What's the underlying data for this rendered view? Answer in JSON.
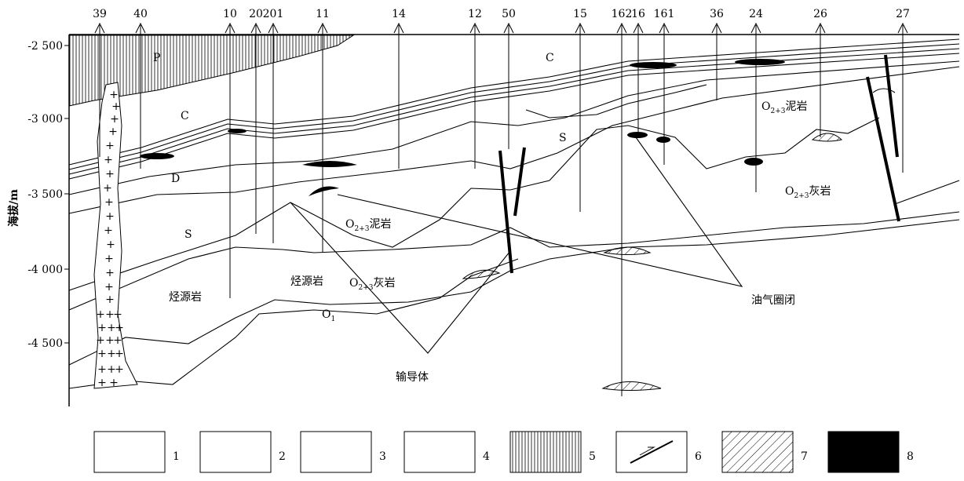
{
  "wells": [
    "39",
    "40",
    "10",
    "20",
    "201",
    "11",
    "14",
    "12",
    "50",
    "15",
    "162",
    "16",
    "161",
    "36",
    "24",
    "26",
    "27"
  ],
  "axis": {
    "label": "海拔/m",
    "ticks": [
      "-2 500",
      "-3 000",
      "-3 500",
      "-4 000",
      "-4 500"
    ]
  },
  "formations": [
    {
      "text": "P"
    },
    {
      "text": "C"
    },
    {
      "text": "C"
    },
    {
      "text": "D"
    },
    {
      "text": "S"
    },
    {
      "text": "S"
    },
    {
      "main": "O",
      "sub": "2+3",
      "suffix": "泥岩"
    },
    {
      "main": "O",
      "sub": "2+3",
      "suffix": "灰岩"
    },
    {
      "main": "O",
      "sub": "1"
    },
    {
      "text": "烃源岩"
    },
    {
      "text": "烃源岩"
    },
    {
      "main": "O",
      "sub": "2+3",
      "suffix": "泥岩"
    },
    {
      "main": "O",
      "sub": "2+3",
      "suffix": "灰岩"
    }
  ],
  "annotations": [
    "输导体",
    "油气圈闭"
  ],
  "legend": [
    "1",
    "2",
    "3",
    "4",
    "5",
    "6",
    "7",
    "8"
  ]
}
